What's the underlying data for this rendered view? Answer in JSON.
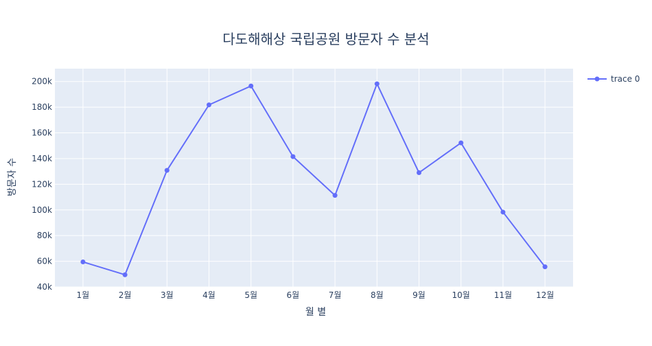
{
  "chart_data": {
    "type": "line",
    "title": "다도해해상 국립공원 방문자 수 분석",
    "xlabel": "월 별",
    "ylabel": "방문자 수",
    "categories": [
      "1월",
      "2월",
      "3월",
      "4월",
      "5월",
      "6월",
      "7월",
      "8월",
      "9월",
      "10월",
      "11월",
      "12월"
    ],
    "series": [
      {
        "name": "trace 0",
        "values": [
          59500,
          49500,
          130800,
          181800,
          196500,
          141500,
          111300,
          198200,
          129000,
          152200,
          98300,
          55700
        ]
      }
    ],
    "ylim": [
      40000,
      210000
    ],
    "yticks": [
      40000,
      60000,
      80000,
      100000,
      120000,
      140000,
      160000,
      180000,
      200000
    ],
    "ytick_labels": [
      "40k",
      "60k",
      "80k",
      "100k",
      "120k",
      "140k",
      "160k",
      "180k",
      "200k"
    ],
    "grid": true,
    "legend": "top-right",
    "colors": {
      "line": "#636efa",
      "plot_bg": "#e5ecf6",
      "grid": "#ffffff",
      "text": "#2a3f5f"
    }
  }
}
